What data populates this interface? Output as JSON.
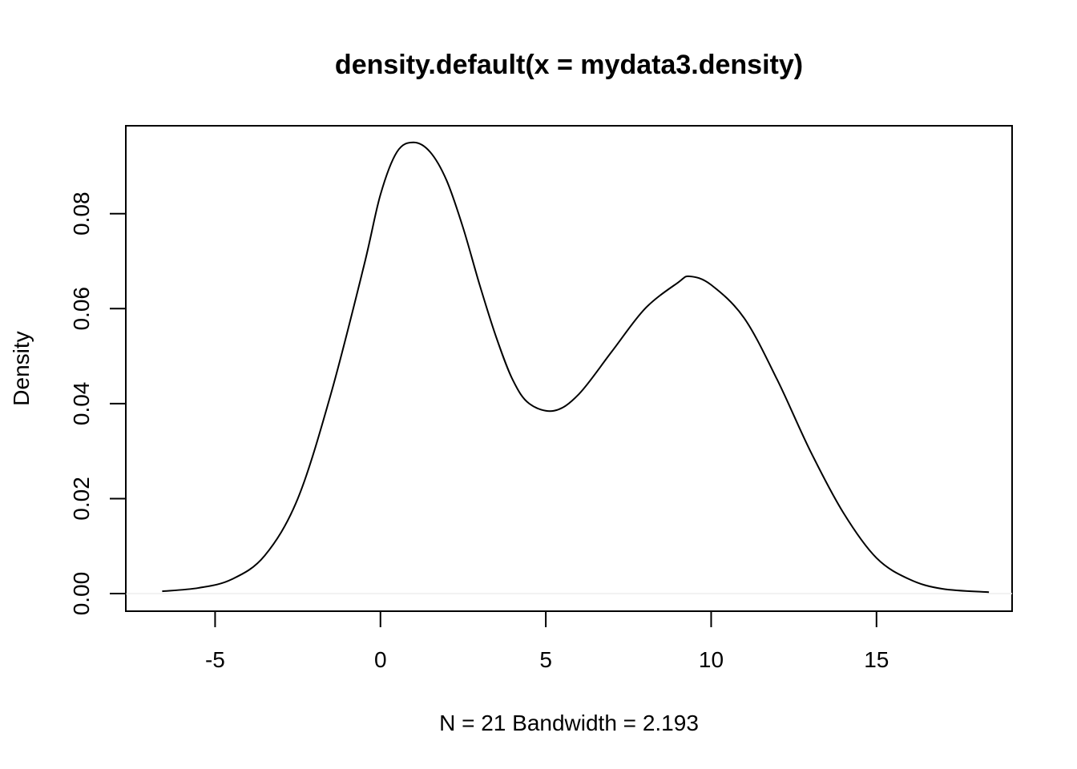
{
  "chart_data": {
    "type": "line",
    "title": "density.default(x = mydata3.density)",
    "xlabel": "N = 21   Bandwidth = 2.193",
    "ylabel": "Density",
    "xlim": [
      -7.7,
      19.1
    ],
    "ylim": [
      -0.0037,
      0.0985
    ],
    "x_ticks": [
      -5,
      0,
      5,
      10,
      15
    ],
    "y_ticks": [
      0.0,
      0.02,
      0.04,
      0.06,
      0.08
    ],
    "x_tick_labels": [
      "-5",
      "0",
      "5",
      "10",
      "15"
    ],
    "y_tick_labels": [
      "0.00",
      "0.02",
      "0.04",
      "0.06",
      "0.08"
    ],
    "grid": false,
    "legend": "none",
    "baseline": 0,
    "line_color": "#000000",
    "baseline_color": "#eeeeee",
    "series": [
      {
        "x": [
          -6.6,
          -5.5,
          -4.5,
          -3.5,
          -2.5,
          -1.5,
          -0.5,
          0.0,
          0.5,
          1.0,
          1.5,
          2.0,
          2.5,
          3.0,
          3.5,
          4.0,
          4.5,
          5.25,
          6.0,
          7.0,
          8.0,
          9.0,
          9.35,
          10.0,
          11.0,
          12.0,
          13.0,
          14.0,
          15.0,
          16.0,
          17.0,
          18.4
        ],
        "y": [
          0.0005,
          0.0012,
          0.003,
          0.008,
          0.02,
          0.042,
          0.069,
          0.084,
          0.093,
          0.095,
          0.093,
          0.087,
          0.077,
          0.065,
          0.054,
          0.045,
          0.04,
          0.0385,
          0.042,
          0.051,
          0.06,
          0.0655,
          0.0668,
          0.065,
          0.058,
          0.045,
          0.03,
          0.017,
          0.0075,
          0.003,
          0.001,
          0.0003
        ]
      }
    ]
  }
}
